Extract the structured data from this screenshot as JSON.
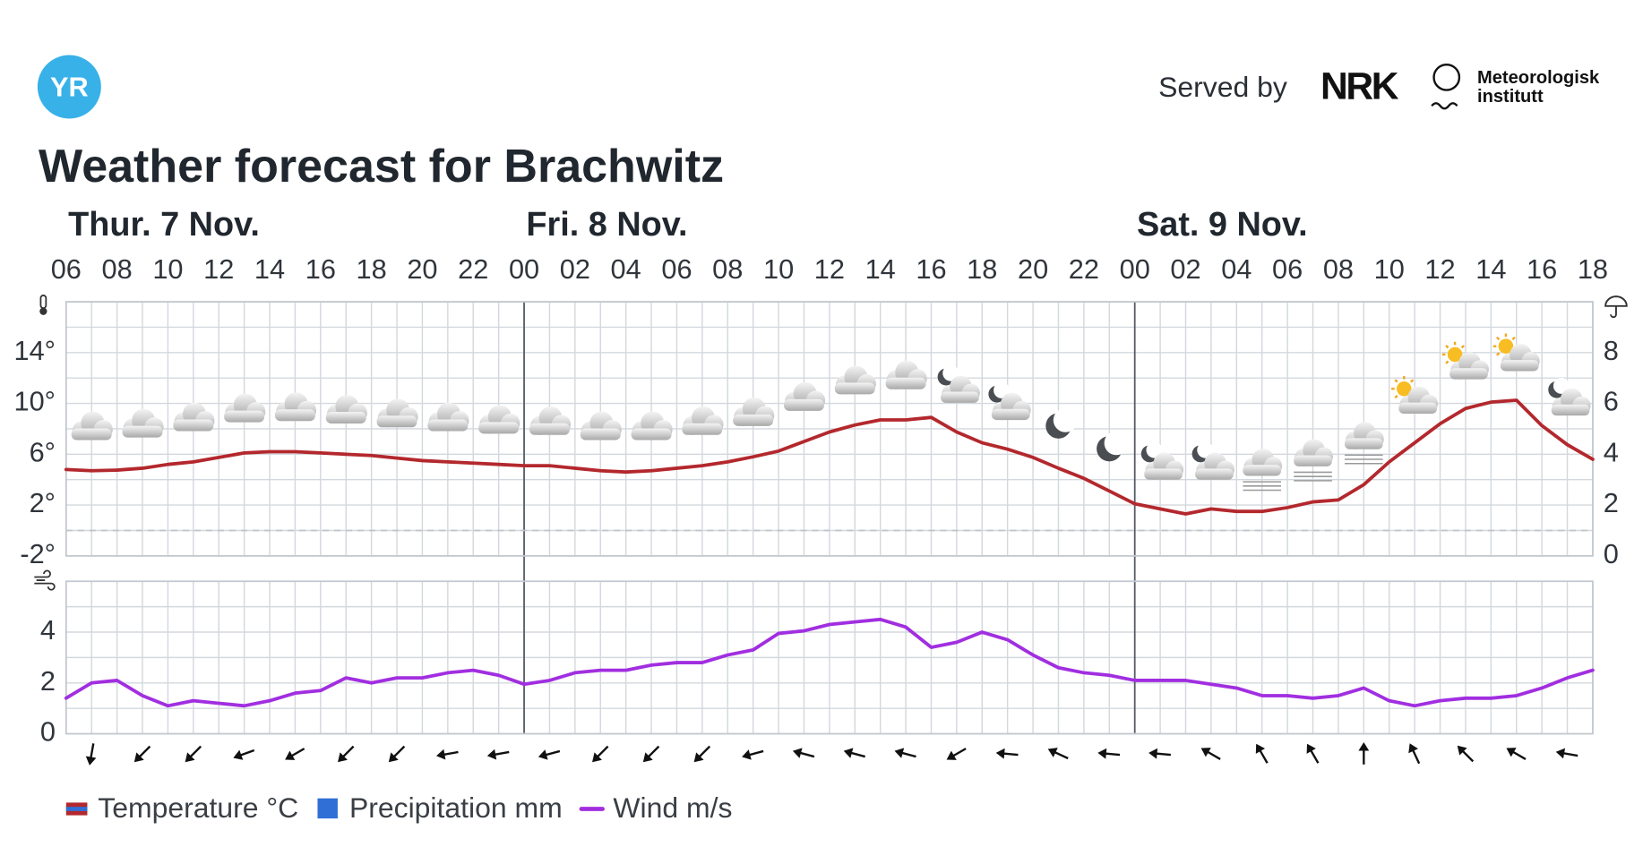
{
  "header": {
    "logo": "YR",
    "served_by": "Served by",
    "nrk": "NRK",
    "met": [
      "Meteorologisk",
      "institutt"
    ]
  },
  "chart_data": [
    {
      "type": "line",
      "title": "Weather forecast for Brachwitz",
      "days": [
        "Thur. 7 Nov.",
        "Fri. 8 Nov.",
        "Sat. 9 Nov."
      ],
      "categories": [
        "06",
        null,
        "08",
        null,
        "10",
        null,
        "12",
        null,
        "14",
        null,
        "16",
        null,
        "18",
        null,
        "20",
        null,
        "22",
        null,
        "00",
        null,
        "02",
        null,
        "04",
        null,
        "06",
        null,
        "08",
        null,
        "10",
        null,
        "12",
        null,
        "14",
        null,
        "16",
        null,
        "18",
        null,
        "20",
        null,
        "22",
        null,
        "00",
        null,
        "02",
        null,
        "04",
        null,
        "06",
        null,
        "08",
        null,
        "10",
        null,
        "12",
        null,
        "14",
        null,
        "16",
        null,
        "18"
      ],
      "ylim": [
        -2,
        18
      ],
      "yticks": [
        {
          "value": -2,
          "label": "-2°"
        },
        {
          "value": 2,
          "label": "2°"
        },
        {
          "value": 6,
          "label": "6°"
        },
        {
          "value": 10,
          "label": "10°"
        },
        {
          "value": 14,
          "label": "14°"
        }
      ],
      "ygrid": [
        -2,
        0,
        2,
        4,
        6,
        8,
        10,
        12,
        14,
        16,
        18
      ],
      "y2lim": [
        0,
        10
      ],
      "y2ticks": [
        0,
        2,
        4,
        6,
        8
      ],
      "grid": true,
      "series": [
        {
          "name": "Temperature °C",
          "color": "#b3282d",
          "values": [
            4.8,
            4.7,
            4.75,
            4.9,
            5.2,
            5.4,
            5.75,
            6.1,
            6.2,
            6.2,
            6.1,
            6.0,
            5.9,
            5.7,
            5.5,
            5.4,
            5.3,
            5.2,
            5.1,
            5.1,
            4.9,
            4.7,
            4.6,
            4.7,
            4.9,
            5.1,
            5.4,
            5.8,
            6.25,
            7.0,
            7.75,
            8.3,
            8.7,
            8.7,
            8.9,
            7.75,
            6.9,
            6.4,
            5.75,
            4.9,
            4.1,
            3.1,
            2.1,
            1.7,
            1.3,
            1.7,
            1.5,
            1.5,
            1.8,
            2.25,
            2.4,
            3.6,
            5.4,
            6.9,
            8.4,
            9.6,
            10.1,
            10.25,
            8.25,
            6.75,
            5.6
          ]
        },
        {
          "name": "Precipitation mm",
          "color": "#2f6fd6",
          "axis": "y2",
          "values": [
            0,
            0,
            0,
            0,
            0,
            0,
            0,
            0,
            0,
            0,
            0,
            0,
            0,
            0,
            0,
            0,
            0,
            0,
            0,
            0,
            0,
            0,
            0,
            0,
            0,
            0,
            0,
            0,
            0,
            0,
            0,
            0,
            0,
            0,
            0,
            0,
            0,
            0,
            0,
            0,
            0,
            0,
            0,
            0,
            0,
            0,
            0,
            0,
            0,
            0,
            0,
            0,
            0,
            0,
            0,
            0,
            0,
            0,
            0,
            0,
            0
          ]
        }
      ]
    },
    {
      "type": "line",
      "ylim": [
        0,
        6
      ],
      "yticks": [
        0,
        2,
        4
      ],
      "ygrid": [
        0,
        1,
        2,
        3,
        4,
        5,
        6
      ],
      "grid": true,
      "series": [
        {
          "name": "Wind m/s",
          "color": "#a12ee0",
          "values": [
            1.4,
            2.0,
            2.1,
            1.5,
            1.1,
            1.3,
            1.2,
            1.1,
            1.3,
            1.6,
            1.7,
            2.2,
            2.0,
            2.2,
            2.2,
            2.4,
            2.5,
            2.3,
            1.95,
            2.1,
            2.4,
            2.5,
            2.5,
            2.7,
            2.8,
            2.8,
            3.1,
            3.3,
            3.95,
            4.05,
            4.3,
            4.4,
            4.5,
            4.2,
            3.4,
            3.6,
            4.0,
            3.7,
            3.1,
            2.6,
            2.4,
            2.3,
            2.1,
            2.1,
            2.1,
            1.95,
            1.8,
            1.5,
            1.5,
            1.4,
            1.5,
            1.8,
            1.3,
            1.1,
            1.3,
            1.4,
            1.4,
            1.5,
            1.8,
            2.2,
            2.5
          ]
        }
      ],
      "wind_from_deg": [
        null,
        10,
        null,
        45,
        null,
        45,
        null,
        70,
        null,
        60,
        null,
        45,
        null,
        45,
        null,
        80,
        null,
        80,
        null,
        75,
        null,
        45,
        null,
        45,
        null,
        45,
        null,
        75,
        null,
        105,
        null,
        105,
        null,
        105,
        null,
        60,
        null,
        95,
        null,
        115,
        null,
        95,
        null,
        95,
        null,
        120,
        null,
        150,
        null,
        150,
        null,
        180,
        null,
        155,
        null,
        135,
        null,
        120,
        null,
        100,
        null
      ]
    }
  ]
}
